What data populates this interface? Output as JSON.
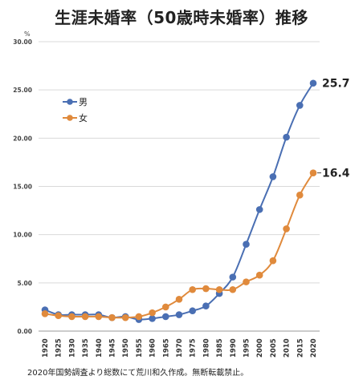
{
  "title": "生涯未婚率（50歳時未婚率）推移",
  "footnote": "2020年国勢調査より総数にて荒川和久作成。無断転載禁止。",
  "chart_data": {
    "type": "line",
    "title": "生涯未婚率（50歳時未婚率）推移",
    "ylabel": "%",
    "xlabel": "",
    "ylim": [
      0,
      30
    ],
    "yticks": [
      "0.00",
      "5.00",
      "10.00",
      "15.00",
      "20.00",
      "25.00",
      "30.00"
    ],
    "grid": true,
    "legend_position": "left",
    "x": [
      "1920",
      "1925",
      "1930",
      "1935",
      "1940",
      "1945",
      "1950",
      "1955",
      "1960",
      "1965",
      "1970",
      "1975",
      "1980",
      "1985",
      "1990",
      "1995",
      "2000",
      "2005",
      "2010",
      "2015",
      "2020"
    ],
    "series": [
      {
        "name": "男",
        "color": "#4a6fb3",
        "values": [
          2.2,
          1.7,
          1.7,
          1.7,
          1.7,
          1.4,
          1.5,
          1.2,
          1.3,
          1.5,
          1.7,
          2.1,
          2.6,
          3.9,
          5.6,
          9.0,
          12.6,
          16.0,
          20.1,
          23.4,
          25.7
        ],
        "end_label": "25.7"
      },
      {
        "name": "女",
        "color": "#e08a3c",
        "values": [
          1.8,
          1.6,
          1.5,
          1.5,
          1.5,
          1.4,
          1.4,
          1.5,
          1.9,
          2.5,
          3.3,
          4.3,
          4.4,
          4.3,
          4.3,
          5.1,
          5.8,
          7.3,
          10.6,
          14.1,
          16.4
        ],
        "end_label": "16.4"
      }
    ]
  }
}
